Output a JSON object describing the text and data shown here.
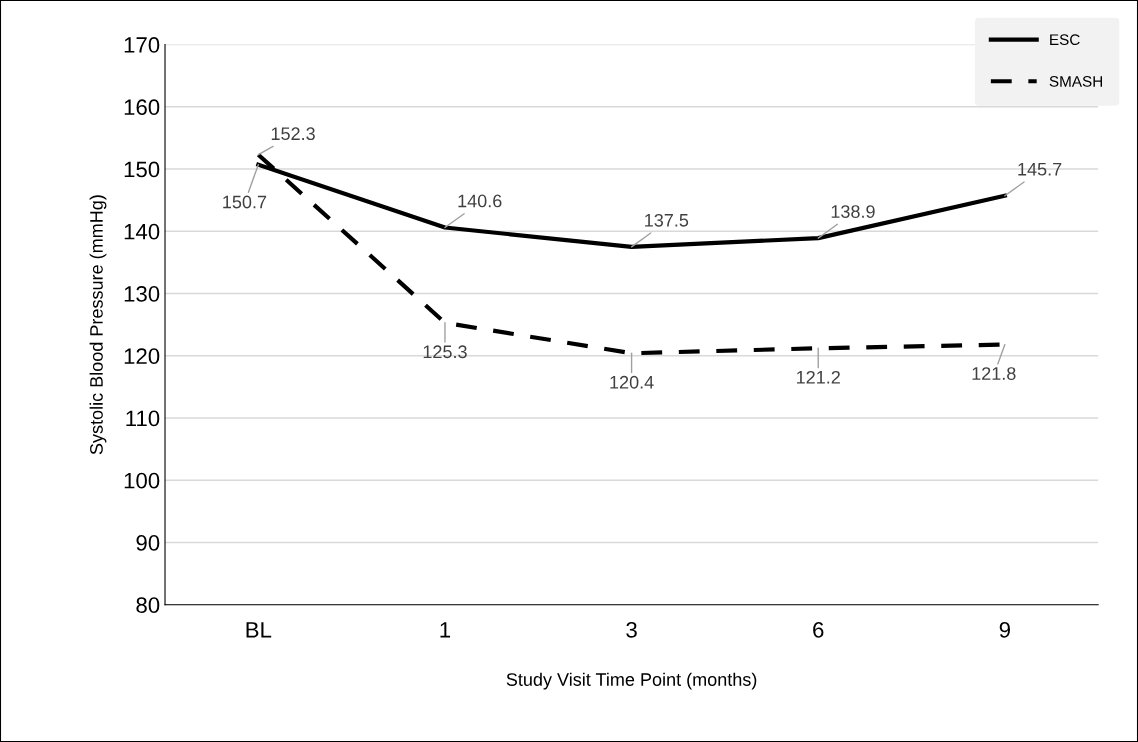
{
  "chart_data": {
    "type": "line",
    "xlabel": "Study Visit Time Point (months)",
    "ylabel": "Systolic Blood Pressure (mmHg)",
    "categories": [
      "BL",
      "1",
      "3",
      "6",
      "9"
    ],
    "series": [
      {
        "name": "ESC",
        "color": "#000000",
        "line_style": "solid",
        "values": [
          150.7,
          140.6,
          137.5,
          138.9,
          145.7
        ]
      },
      {
        "name": "SMASH",
        "color": "#000000",
        "line_style": "dashed",
        "values": [
          152.3,
          125.3,
          120.4,
          121.2,
          121.8
        ]
      }
    ],
    "ylim": [
      80,
      170
    ],
    "yticks": [
      80,
      90,
      100,
      110,
      120,
      130,
      140,
      150,
      160,
      170
    ],
    "grid": "y",
    "legend": "top right",
    "data_labels": true,
    "marker": "none"
  }
}
